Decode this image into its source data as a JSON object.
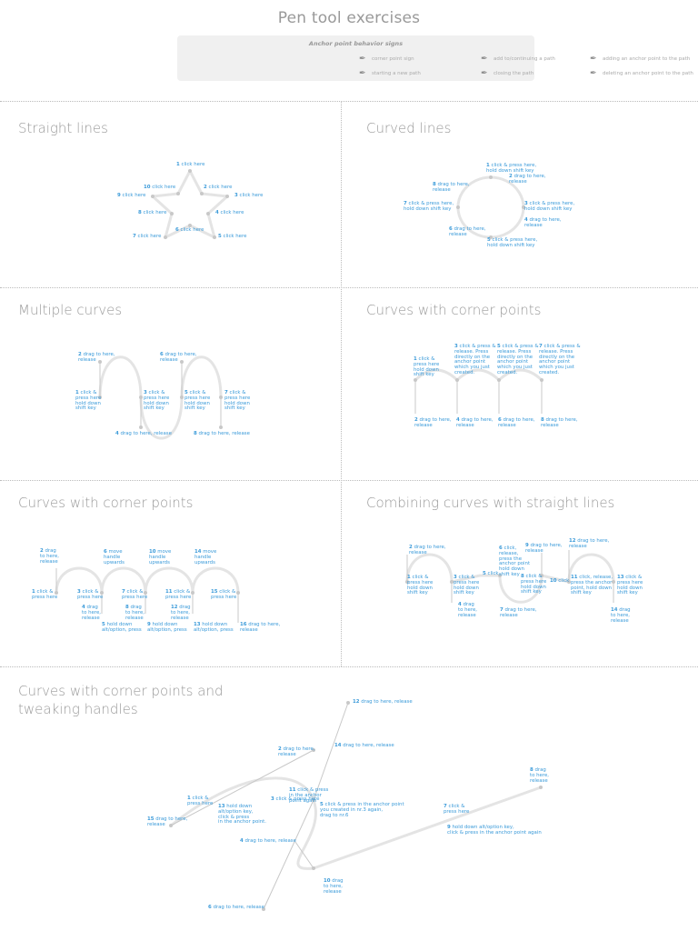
{
  "title": "Pen tool exercises",
  "legend": {
    "title": "Anchor point behavior signs",
    "items": [
      {
        "label": "corner point sign",
        "icon": "pen-corner-icon"
      },
      {
        "label": "add to/continuing a path",
        "icon": "pen-continue-icon"
      },
      {
        "label": "adding an anchor point to the path",
        "icon": "pen-add-icon"
      },
      {
        "label": "starting a new path",
        "icon": "pen-new-icon"
      },
      {
        "label": "closing the path",
        "icon": "pen-close-icon"
      },
      {
        "label": "deleting an anchor point to the path",
        "icon": "pen-delete-icon"
      }
    ]
  },
  "sections": {
    "straight_lines": {
      "title": "Straight lines",
      "labels": [
        [
          "1",
          " click here"
        ],
        [
          "2",
          " click here"
        ],
        [
          "3",
          " click here"
        ],
        [
          "4",
          " click here"
        ],
        [
          "5",
          " click here"
        ],
        [
          "6",
          " click here"
        ],
        [
          "7",
          " click here"
        ],
        [
          "8",
          " click here"
        ],
        [
          "9",
          " click here"
        ],
        [
          "10",
          " click here"
        ]
      ]
    },
    "curved_lines": {
      "title": "Curved lines",
      "labels": [
        [
          "1",
          " click & press here,\nhold down shift key"
        ],
        [
          "2",
          " drag to here,\nrelease"
        ],
        [
          "3",
          " click & press here,\nhold down shift key"
        ],
        [
          "4",
          " drag to here,\nrelease"
        ],
        [
          "5",
          " click & press here,\nhold down shift key"
        ],
        [
          "6",
          " drag to here,\nrelease"
        ],
        [
          "7",
          " click & press here,\nhold down shift key"
        ],
        [
          "8",
          " drag to here,\nrelease"
        ]
      ]
    },
    "multiple_curves": {
      "title": "Multiple curves",
      "labels": [
        [
          "1",
          " click &\npress here\nhold down\nshift key"
        ],
        [
          "2",
          " drag to here,\nrelease"
        ],
        [
          "3",
          " click &\npress here\nhold down\nshift key"
        ],
        [
          "4",
          " drag to here, release"
        ],
        [
          "5",
          " click &\npress here\nhold down\nshift key"
        ],
        [
          "6",
          " drag to here,\nrelease"
        ],
        [
          "7",
          " click &\npress here\nhold down\nshift key"
        ],
        [
          "8",
          " drag to here, release"
        ]
      ]
    },
    "curves_corner_1": {
      "title": "Curves with corner points",
      "labels": [
        [
          "1",
          " click &\npress here\nhold down\nshift key"
        ],
        [
          "2",
          " drag to here,\nrelease"
        ],
        [
          "3",
          " click & press &\nrelease. Press\ndirectly on the\nanchor point\nwhich you just\ncreated."
        ],
        [
          "4",
          " drag to here,\nrelease"
        ],
        [
          "5",
          " click & press &\nrelease. Press\ndirectly on the\nanchor point\nwhich you just\ncreated."
        ],
        [
          "6",
          " drag to here,\nrelease"
        ],
        [
          "7",
          " click & press &\nrelease. Press\ndirectly on the\nanchor point\nwhich you just\ncreated."
        ],
        [
          "8",
          " drag to here,\nrelease"
        ]
      ]
    },
    "curves_corner_2": {
      "title": "Curves with corner points",
      "labels": [
        [
          "1",
          " click &\npress here"
        ],
        [
          "2",
          " drag\nto here,\nrelease"
        ],
        [
          "3",
          " click &\npress here"
        ],
        [
          "4",
          " drag\nto here,\nrelease"
        ],
        [
          "5",
          " hold down\nalt/option, press"
        ],
        [
          "6",
          " move\nhandle\nupwards"
        ],
        [
          "7",
          " click &\npress here"
        ],
        [
          "8",
          " drag\nto here,\nrelease"
        ],
        [
          "9",
          " hold down\nalt/option, press"
        ],
        [
          "10",
          " move\nhandle\nupwards"
        ],
        [
          "11",
          " click &\npress here"
        ],
        [
          "12",
          " drag\nto here,\nrelease"
        ],
        [
          "13",
          " hold down\nalt/option, press"
        ],
        [
          "14",
          " move\nhandle\nupwards"
        ],
        [
          "15",
          " click &\npress here"
        ],
        [
          "16",
          " drag to here,\nrelease"
        ]
      ]
    },
    "combining": {
      "title": "Combining curves with straight lines",
      "labels": [
        [
          "1",
          " click &\npress here\nhold down\nshift key"
        ],
        [
          "2",
          " drag to here,\nrelease"
        ],
        [
          "3",
          " click &\npress here\nhold down\nshift key"
        ],
        [
          "4",
          " drag\nto here,\nrelease"
        ],
        [
          "5",
          " click"
        ],
        [
          "6",
          " click,\nrelease,\npress the\nanchor point\nhold down\nshift key"
        ],
        [
          "7",
          " drag to here,\nrelease"
        ],
        [
          "8",
          " click &\npress here\nhold down\nshift key"
        ],
        [
          "9",
          " drag to here,\nrelease"
        ],
        [
          "10",
          " click"
        ],
        [
          "11",
          " click, release,\npress the anchor\npoint, hold down\nshift key"
        ],
        [
          "12",
          " drag to here,\nrelease"
        ],
        [
          "13",
          " click &\npress here\nhold down\nshift key"
        ],
        [
          "14",
          " drag\nto here,\nrelease"
        ]
      ]
    },
    "tweaking": {
      "title": "Curves with corner points and tweaking handles",
      "labels": [
        [
          "1",
          " click &\npress here"
        ],
        [
          "2",
          " drag to here,\nrelease"
        ],
        [
          "3",
          " click & press here"
        ],
        [
          "4",
          " drag to here, release"
        ],
        [
          "5",
          " click & press in the anchor point\nyou created in nr.3 again,\ndrag to nr.6"
        ],
        [
          "6",
          " drag to here, release"
        ],
        [
          "7",
          " click &\npress here"
        ],
        [
          "8",
          " drag\nto here,\nrelease"
        ],
        [
          "9",
          " hold down alt/option key,\nclick & press in the anchor point again"
        ],
        [
          "10",
          " drag\nto here,\nrelease"
        ],
        [
          "11",
          " click & press\nin the anchor\npoint again"
        ],
        [
          "12",
          " drag to here, release"
        ],
        [
          "13",
          " hold down\nalt/option key,\nclick & press\nin the anchor point."
        ],
        [
          "14",
          " drag to here, release"
        ],
        [
          "15",
          " drag to here,\nrelease"
        ]
      ]
    }
  },
  "colors": {
    "accent": "#3a9ad9",
    "guide": "#e4e4e4",
    "point": "#c8c8c8",
    "text": "#999999"
  }
}
